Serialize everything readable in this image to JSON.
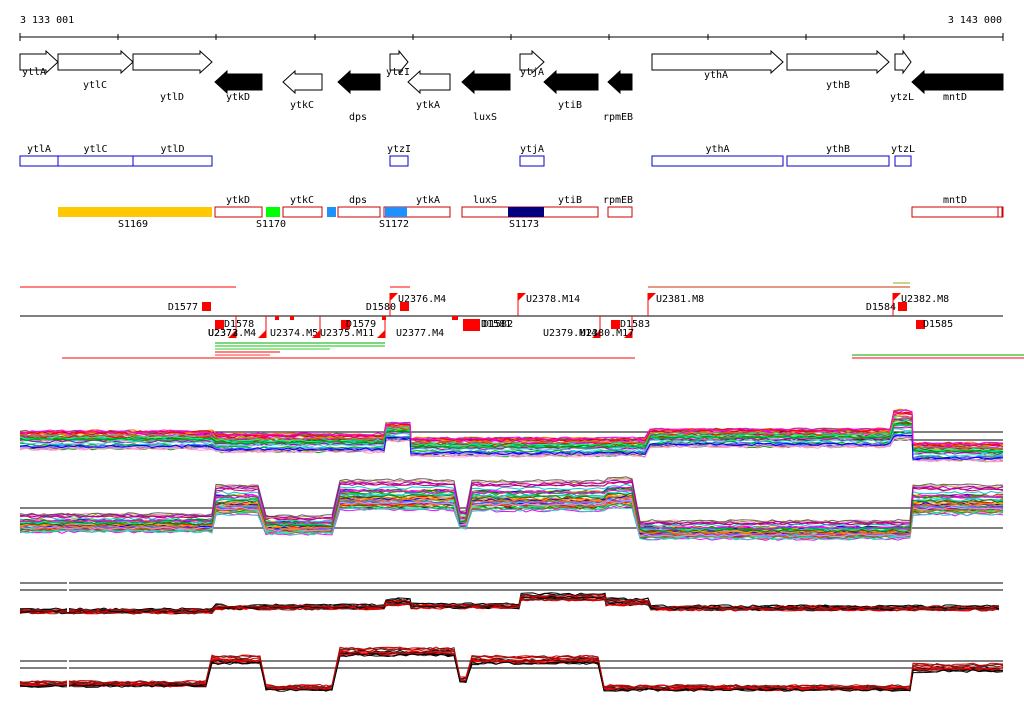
{
  "coords": {
    "start": "3 133 001",
    "end": "3 143 000"
  },
  "genes": [
    {
      "name": "ytlA",
      "dir": "+",
      "style": "open"
    },
    {
      "name": "ytlC",
      "dir": "+",
      "style": "open"
    },
    {
      "name": "ytlD",
      "dir": "+",
      "style": "open"
    },
    {
      "name": "ytkD",
      "dir": "-",
      "style": "filled"
    },
    {
      "name": "ytkC",
      "dir": "-",
      "style": "open"
    },
    {
      "name": "dps",
      "dir": "-",
      "style": "filled"
    },
    {
      "name": "ytzI",
      "dir": "+",
      "style": "open"
    },
    {
      "name": "ytkA",
      "dir": "-",
      "style": "open"
    },
    {
      "name": "luxS",
      "dir": "-",
      "style": "filled"
    },
    {
      "name": "ytjA",
      "dir": "+",
      "style": "open"
    },
    {
      "name": "ytiB",
      "dir": "-",
      "style": "filled"
    },
    {
      "name": "rpmEB",
      "dir": "-",
      "style": "filled"
    },
    {
      "name": "ythA",
      "dir": "+",
      "style": "open"
    },
    {
      "name": "ythB",
      "dir": "+",
      "style": "open"
    },
    {
      "name": "ytzL",
      "dir": "+",
      "style": "open"
    },
    {
      "name": "mntD",
      "dir": "-",
      "style": "filled"
    }
  ],
  "plus_boxes": [
    "ytlA",
    "ytlC",
    "ytlD",
    "ytzI",
    "ytjA",
    "ythA",
    "ythB",
    "ytzL"
  ],
  "minus_boxes": [
    "ytkD",
    "ytkC",
    "dps",
    "ytkA",
    "luxS",
    "ytiB",
    "rpmEB",
    "mntD"
  ],
  "segments": [
    "S1169",
    "S1170",
    "S1172",
    "S1173"
  ],
  "segment_colors": [
    "#ffc800",
    "#00ff00",
    "#1e90ff",
    "#000080"
  ],
  "features_top": [
    "D1577",
    "D1580",
    "U2376.M4",
    "U2378.M14",
    "U2381.M8",
    "D1584",
    "U2382.M8"
  ],
  "features_bottom": [
    "D1578",
    "U2373.M4",
    "U2374.M5",
    "D1579",
    "U2375.M11",
    "U2377.M4",
    "D1581",
    "D1582",
    "U2379.M14",
    "U2380.M17",
    "D1583",
    "D1585"
  ],
  "features_bottom_extra": [
    "U2372"
  ],
  "colors": {
    "minus": "#cc0000",
    "plus": "#0000cc",
    "marker": "#ff0000"
  }
}
